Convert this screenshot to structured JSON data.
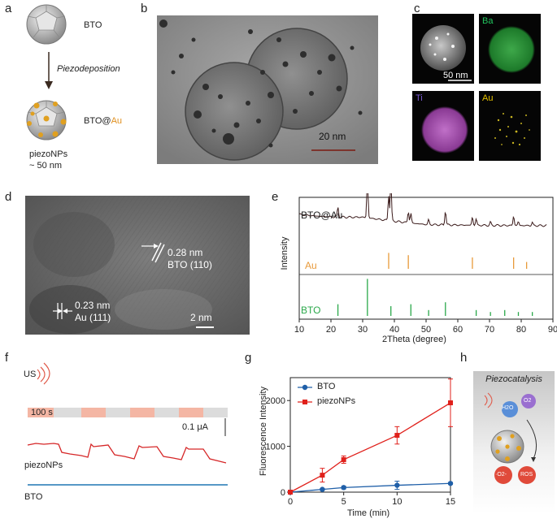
{
  "panel_letters": [
    "a",
    "b",
    "c",
    "d",
    "e",
    "f",
    "g",
    "h"
  ],
  "panel_a": {
    "top_label": "BTO",
    "arrow_label": "Piezodeposition",
    "bottom_label_prefix": "BTO@",
    "bottom_label_suffix": "Au",
    "caption_line1": "piezoNPs",
    "caption_line2": "~ 50 nm"
  },
  "panel_b": {
    "scale_label": "20 nm"
  },
  "panel_c": {
    "tiles": [
      {
        "label": "",
        "scale_label": "50 nm"
      },
      {
        "label": "Ba",
        "color": "#22c55e"
      },
      {
        "label": "Ti",
        "color": "#6b46c1"
      },
      {
        "label": "Au",
        "color": "#e6c200"
      }
    ]
  },
  "panel_d": {
    "label1_line1": "0.28 nm",
    "label1_line2": "BTO (110)",
    "label2_line1": "0.23 nm",
    "label2_line2": "Au (111)",
    "scale_label": "2 nm"
  },
  "panel_e": {
    "ylabel": "Intensity",
    "xlabel": "2Theta (degree)",
    "trace_labels": [
      "BTO@Au",
      "Au",
      "BTO"
    ],
    "x_ticks": [
      "10",
      "20",
      "30",
      "40",
      "50",
      "60",
      "70",
      "80",
      "90"
    ],
    "xlim": [
      10,
      90
    ],
    "au_peaks": [
      38.2,
      44.4,
      64.6,
      77.6,
      81.7
    ],
    "bto_peaks": [
      22.2,
      31.5,
      38.9,
      45.2,
      50.8,
      56.1,
      65.8,
      70.3,
      74.8,
      79.1,
      83.5
    ]
  },
  "panel_f": {
    "us_label": "US",
    "time_label": "100 s",
    "current_scale": "0.1 μA",
    "trace_labels": [
      "piezoNPs",
      "BTO"
    ],
    "colors": {
      "piezo": "#d62728",
      "bto": "#1f77b4",
      "on": "#f4b6a4",
      "off": "#dcdcdc"
    }
  },
  "panel_g": {
    "ylabel": "Fluorescence Intensity",
    "xlabel": "Time (min)",
    "legend": [
      "BTO",
      "piezoNPs"
    ],
    "x_ticks": [
      "0",
      "5",
      "10",
      "15"
    ],
    "y_ticks": [
      "0",
      "1000",
      "2000"
    ]
  },
  "panel_h": {
    "title": "Piezocatalysis",
    "molecules": [
      "H2O",
      "O2",
      "·O2-",
      "ROS"
    ]
  },
  "chart_data": [
    {
      "type": "line",
      "title": "",
      "xlabel": "2Theta (degree)",
      "ylabel": "Intensity",
      "xlim": [
        10,
        90
      ],
      "series": [
        {
          "name": "BTO@Au",
          "description": "XRD pattern"
        },
        {
          "name": "Au",
          "peaks": [
            38.2,
            44.4,
            64.6,
            77.6,
            81.7
          ]
        },
        {
          "name": "BTO",
          "peaks": [
            22.2,
            31.5,
            38.9,
            45.2,
            50.8,
            56.1,
            65.8,
            70.3,
            74.8,
            79.1,
            83.5
          ]
        }
      ]
    },
    {
      "type": "line",
      "title": "",
      "xlabel": "Time (min)",
      "ylabel": "Fluorescence Intensity",
      "xlim": [
        0,
        15
      ],
      "ylim": [
        0,
        2500
      ],
      "x": [
        0,
        3,
        5,
        10,
        15
      ],
      "series": [
        {
          "name": "BTO",
          "color": "#1f5fa8",
          "values": [
            0,
            60,
            100,
            150,
            190
          ],
          "errors": [
            0,
            20,
            30,
            90,
            20
          ]
        },
        {
          "name": "piezoNPs",
          "color": "#e0201b",
          "values": [
            0,
            370,
            710,
            1240,
            1950
          ],
          "errors": [
            0,
            150,
            80,
            190,
            520
          ]
        }
      ],
      "legend": "top-left"
    }
  ]
}
